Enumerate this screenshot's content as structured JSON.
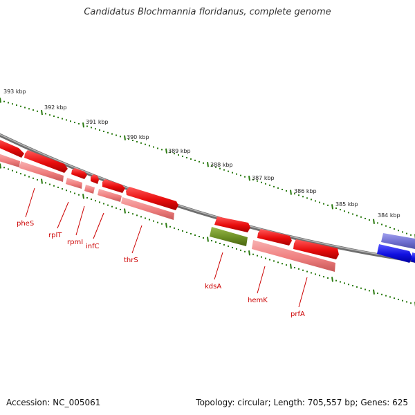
{
  "title": "Candidatus Blochmannia floridanus, complete genome",
  "footer": {
    "accession": "Accession: NC_005061",
    "topology": "Topology: circular; Length: 705,557 bp; Genes: 625"
  },
  "colors": {
    "backbone": "#808080",
    "tick": "#2a7a10",
    "gene_forward": "#e01010",
    "gene_reverse": "#f08888",
    "gene_rna": "#6b8e23",
    "gene_blue_dark": "#1010d0",
    "gene_blue_light": "#7070d0",
    "label": "#cc0000"
  },
  "ticks": [
    "393 kbp",
    "392 kbp",
    "391 kbp",
    "390 kbp",
    "389 kbp",
    "388 kbp",
    "387 kbp",
    "386 kbp",
    "385 kbp",
    "384 kbp"
  ],
  "genes": [
    "pheS",
    "rplT",
    "rpmI",
    "infC",
    "thrS",
    "kdsA",
    "hemK",
    "prfA"
  ]
}
